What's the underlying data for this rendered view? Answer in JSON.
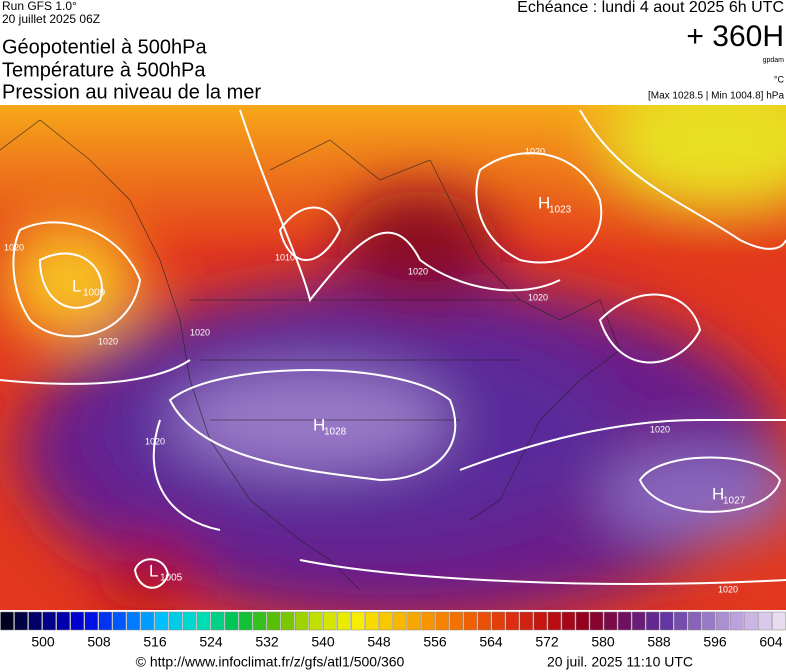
{
  "header": {
    "run": "Run GFS 1.0°",
    "run_date": "20 juillet 2025 06Z",
    "valid": "Echéance : lundi 4 aout 2025 6h UTC",
    "titles": [
      "Géopotentiel à 500hPa",
      "Température à 500hPa",
      "Pression au niveau de la mer"
    ],
    "lead": "+ 360H",
    "unit_geo": "gpdam",
    "unit_temp": "°C",
    "extremes": "[Max 1028.5 | Min 1004.8] hPa"
  },
  "map": {
    "centers": [
      {
        "letter": "H",
        "value": 1023
      },
      {
        "letter": "L",
        "value": 1009
      },
      {
        "letter": "H",
        "value": 1028
      },
      {
        "letter": "H",
        "value": 1027
      },
      {
        "letter": "L",
        "value": 1005
      }
    ],
    "contour_labels": [
      1020,
      1020,
      1010,
      1020,
      1020,
      1020,
      1020,
      1020,
      1020,
      1020
    ]
  },
  "colorbar": {
    "labels": [
      500,
      508,
      516,
      524,
      532,
      540,
      548,
      556,
      564,
      572,
      580,
      588,
      596,
      604
    ]
  },
  "footer": {
    "source": "© http://www.infoclimat.fr/z/gfs/atl1/500/360",
    "generated": "20 juil. 2025 11:10 UTC"
  }
}
